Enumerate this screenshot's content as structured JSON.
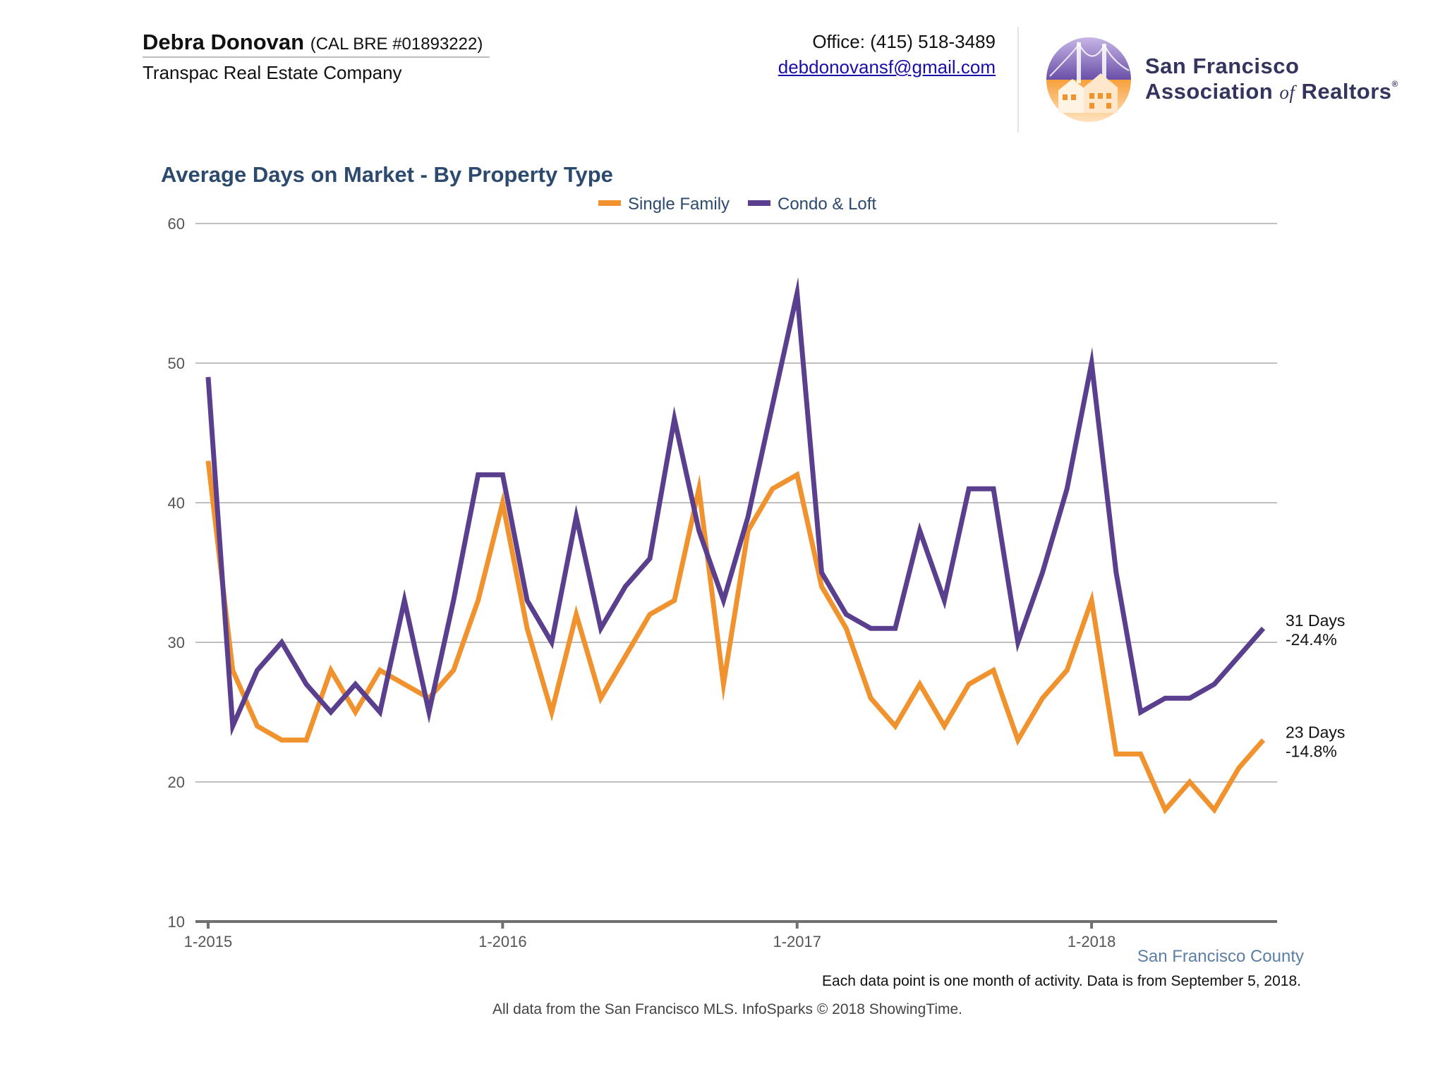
{
  "header": {
    "agent_name": "Debra Donovan",
    "license": "(CAL BRE #01893222)",
    "company": "Transpac Real Estate Company",
    "office": "Office: (415) 518-3489",
    "email": "debdonovansf@gmail.com"
  },
  "org": {
    "line1": "San Francisco",
    "line2_a": "Association",
    "line2_of": "of",
    "line2_b": "Realtors",
    "reg": "®",
    "logo_icon": "golden-gate-houses-logo-icon"
  },
  "footer": {
    "region": "San Francisco County",
    "note": "Each data point is one month of activity. Data is from September 5, 2018.",
    "source": "All data from the San Francisco MLS. InfoSparks © 2018 ShowingTime."
  },
  "chart_data": {
    "type": "line",
    "title": "Average Days on Market - By Property Type",
    "xlabel": "",
    "ylabel": "",
    "ylim": [
      10,
      60
    ],
    "yticks": [
      10,
      20,
      30,
      40,
      50,
      60
    ],
    "x_start": "1-2015",
    "x_tick_labels": [
      {
        "label": "1-2015",
        "index": 0
      },
      {
        "label": "1-2016",
        "index": 12
      },
      {
        "label": "1-2017",
        "index": 24
      },
      {
        "label": "1-2018",
        "index": 36
      }
    ],
    "grid": true,
    "legend_position": "top-center",
    "series": [
      {
        "name": "Single Family",
        "color": "#f0922e",
        "values": [
          43,
          28,
          24,
          23,
          23,
          28,
          25,
          28,
          27,
          26,
          28,
          33,
          40,
          31,
          25,
          32,
          26,
          29,
          32,
          33,
          41,
          27,
          38,
          41,
          42,
          34,
          31,
          26,
          24,
          27,
          24,
          27,
          28,
          23,
          26,
          28,
          33,
          22,
          22,
          18,
          20,
          18,
          21,
          23
        ],
        "end_label_days": "23 Days",
        "end_label_change": "-14.8%"
      },
      {
        "name": "Condo & Loft",
        "color": "#5a3f8e",
        "values": [
          49,
          24,
          28,
          30,
          27,
          25,
          27,
          25,
          33,
          25,
          33,
          42,
          42,
          33,
          30,
          39,
          31,
          34,
          36,
          46,
          38,
          33,
          39,
          47,
          55,
          35,
          32,
          31,
          31,
          38,
          33,
          41,
          41,
          30,
          35,
          41,
          50,
          35,
          25,
          26,
          26,
          27,
          29,
          31
        ],
        "end_label_days": "31 Days",
        "end_label_change": "-24.4%"
      }
    ]
  }
}
